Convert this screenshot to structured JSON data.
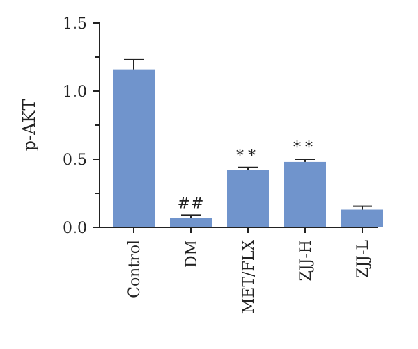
{
  "chart_data": {
    "type": "bar",
    "categories": [
      "Control",
      "DM",
      "MET/FLX",
      "ZJJ-H",
      "ZJJ-L"
    ],
    "values": [
      1.16,
      0.07,
      0.42,
      0.48,
      0.13
    ],
    "errors": [
      0.07,
      0.02,
      0.02,
      0.02,
      0.025
    ],
    "annotations": [
      "",
      "##",
      "**",
      "**",
      ""
    ],
    "ylabel": "p-AKT",
    "xlabel": "",
    "ylim": [
      0,
      1.5
    ],
    "yticks": [
      0.0,
      0.5,
      1.0,
      1.5
    ],
    "ytick_labels": [
      "0.0",
      "0.5",
      "1.0",
      "1.5"
    ],
    "yminor": [
      0.25,
      0.75,
      1.25
    ],
    "bar_color": "#7094cc",
    "grid": false
  }
}
